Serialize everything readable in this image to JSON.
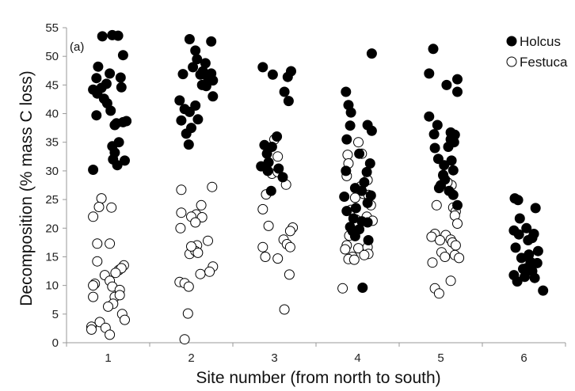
{
  "chart_data": {
    "type": "scatter",
    "panel_label": "(a)",
    "xlabel": "Site number (from north to south)",
    "ylabel": "Decomposition (% mass C loss)",
    "xlim": [
      0.5,
      6.5
    ],
    "ylim": [
      0,
      55
    ],
    "y_ticks": [
      0,
      5,
      10,
      15,
      20,
      25,
      30,
      35,
      40,
      45,
      50,
      55
    ],
    "x_ticks": [
      1,
      2,
      3,
      4,
      5,
      6
    ],
    "grid": false,
    "legend_position": "top-right",
    "series": [
      {
        "name": "Holcus",
        "marker": "filled-circle",
        "color": "#000000",
        "points": [
          [
            1.05,
            53.7
          ],
          [
            0.93,
            53.5
          ],
          [
            1.12,
            53.6
          ],
          [
            1.18,
            50.2
          ],
          [
            0.88,
            48.2
          ],
          [
            1.02,
            47.0
          ],
          [
            0.86,
            46.2
          ],
          [
            1.15,
            46.3
          ],
          [
            0.98,
            45.2
          ],
          [
            0.82,
            44.2
          ],
          [
            0.92,
            44.5
          ],
          [
            1.16,
            44.6
          ],
          [
            0.87,
            43.5
          ],
          [
            0.95,
            42.6
          ],
          [
            0.99,
            41.8
          ],
          [
            1.03,
            40.5
          ],
          [
            0.86,
            39.7
          ],
          [
            1.22,
            38.7
          ],
          [
            1.1,
            38.3
          ],
          [
            1.18,
            38.5
          ],
          [
            1.08,
            38.0
          ],
          [
            1.13,
            35.0
          ],
          [
            1.05,
            34.3
          ],
          [
            1.08,
            33.2
          ],
          [
            1.06,
            32.0
          ],
          [
            1.2,
            31.8
          ],
          [
            1.11,
            31.0
          ],
          [
            0.82,
            30.2
          ],
          [
            1.98,
            53.0
          ],
          [
            2.24,
            52.6
          ],
          [
            2.05,
            51.0
          ],
          [
            2.07,
            49.5
          ],
          [
            2.17,
            48.8
          ],
          [
            2.02,
            48.1
          ],
          [
            2.14,
            47.4
          ],
          [
            2.24,
            47.0
          ],
          [
            2.11,
            46.8
          ],
          [
            1.9,
            46.9
          ],
          [
            2.2,
            46.3
          ],
          [
            2.26,
            45.8
          ],
          [
            2.13,
            45.0
          ],
          [
            2.18,
            44.8
          ],
          [
            2.26,
            43.0
          ],
          [
            1.86,
            42.3
          ],
          [
            1.92,
            40.8
          ],
          [
            2.05,
            41.4
          ],
          [
            1.98,
            40.3
          ],
          [
            1.88,
            38.8
          ],
          [
            2.08,
            39.0
          ],
          [
            2.0,
            37.5
          ],
          [
            1.94,
            36.5
          ],
          [
            1.97,
            34.6
          ],
          [
            2.86,
            48.1
          ],
          [
            3.2,
            47.4
          ],
          [
            3.16,
            46.4
          ],
          [
            2.98,
            46.8
          ],
          [
            3.12,
            43.8
          ],
          [
            3.17,
            42.2
          ],
          [
            3.03,
            36.0
          ],
          [
            2.88,
            34.5
          ],
          [
            2.97,
            34.2
          ],
          [
            2.91,
            33.0
          ],
          [
            2.93,
            31.5
          ],
          [
            2.84,
            30.8
          ],
          [
            2.92,
            30.0
          ],
          [
            3.05,
            30.4
          ],
          [
            3.1,
            28.9
          ],
          [
            2.96,
            26.5
          ],
          [
            4.17,
            50.5
          ],
          [
            3.86,
            43.8
          ],
          [
            3.89,
            41.5
          ],
          [
            3.92,
            40.2
          ],
          [
            3.91,
            37.9
          ],
          [
            4.12,
            38.0
          ],
          [
            4.17,
            37.0
          ],
          [
            3.87,
            35.5
          ],
          [
            4.02,
            33.0
          ],
          [
            4.15,
            31.3
          ],
          [
            3.86,
            30.0
          ],
          [
            4.11,
            29.8
          ],
          [
            4.08,
            28.0
          ],
          [
            3.97,
            27.0
          ],
          [
            4.05,
            26.5
          ],
          [
            3.84,
            25.5
          ],
          [
            4.16,
            25.7
          ],
          [
            4.12,
            24.4
          ],
          [
            3.98,
            23.5
          ],
          [
            3.87,
            23.0
          ],
          [
            3.95,
            21.7
          ],
          [
            4.05,
            21.2
          ],
          [
            4.12,
            21.0
          ],
          [
            3.91,
            20.2
          ],
          [
            4.02,
            19.8
          ],
          [
            3.94,
            19.5
          ],
          [
            3.97,
            18.6
          ],
          [
            4.13,
            17.9
          ],
          [
            4.06,
            9.6
          ],
          [
            4.91,
            51.3
          ],
          [
            4.86,
            47.0
          ],
          [
            5.2,
            46.0
          ],
          [
            5.07,
            45.0
          ],
          [
            5.2,
            43.8
          ],
          [
            4.86,
            39.5
          ],
          [
            4.96,
            38.0
          ],
          [
            4.92,
            36.4
          ],
          [
            5.12,
            36.7
          ],
          [
            5.17,
            36.3
          ],
          [
            5.12,
            35.5
          ],
          [
            5.16,
            35.0
          ],
          [
            4.93,
            34.0
          ],
          [
            5.09,
            34.2
          ],
          [
            4.97,
            32.1
          ],
          [
            5.13,
            31.8
          ],
          [
            5.04,
            31.0
          ],
          [
            5.15,
            30.1
          ],
          [
            5.03,
            29.2
          ],
          [
            5.05,
            28.5
          ],
          [
            5.0,
            27.5
          ],
          [
            4.98,
            27.0
          ],
          [
            5.1,
            26.5
          ],
          [
            5.15,
            25.8
          ],
          [
            5.2,
            24.0
          ],
          [
            5.89,
            25.2
          ],
          [
            5.93,
            24.9
          ],
          [
            6.14,
            23.5
          ],
          [
            5.95,
            21.7
          ],
          [
            6.03,
            20.0
          ],
          [
            6.12,
            19.0
          ],
          [
            5.88,
            19.6
          ],
          [
            5.94,
            18.9
          ],
          [
            6.1,
            18.3
          ],
          [
            6.05,
            17.9
          ],
          [
            5.9,
            16.6
          ],
          [
            6.17,
            16.0
          ],
          [
            6.06,
            15.4
          ],
          [
            5.97,
            14.8
          ],
          [
            6.08,
            14.1
          ],
          [
            6.16,
            13.9
          ],
          [
            5.99,
            12.9
          ],
          [
            6.03,
            13.0
          ],
          [
            6.1,
            12.5
          ],
          [
            5.88,
            11.8
          ],
          [
            6.01,
            11.5
          ],
          [
            6.13,
            11.3
          ],
          [
            5.92,
            10.7
          ],
          [
            6.23,
            9.1
          ]
        ]
      },
      {
        "name": "Festuca",
        "marker": "open-circle",
        "color": "#ffffff",
        "points": [
          [
            0.92,
            25.2
          ],
          [
            1.04,
            23.6
          ],
          [
            0.89,
            23.7
          ],
          [
            0.82,
            22.0
          ],
          [
            0.87,
            17.3
          ],
          [
            1.02,
            17.3
          ],
          [
            0.87,
            14.2
          ],
          [
            1.19,
            13.5
          ],
          [
            1.13,
            12.7
          ],
          [
            1.16,
            13.0
          ],
          [
            1.09,
            12.2
          ],
          [
            0.96,
            11.8
          ],
          [
            1.02,
            10.8
          ],
          [
            0.84,
            10.3
          ],
          [
            0.82,
            10.0
          ],
          [
            1.05,
            9.8
          ],
          [
            1.14,
            9.2
          ],
          [
            1.08,
            8.0
          ],
          [
            1.14,
            8.3
          ],
          [
            0.82,
            8.0
          ],
          [
            1.06,
            6.8
          ],
          [
            1.0,
            6.3
          ],
          [
            1.17,
            5.0
          ],
          [
            1.2,
            4.0
          ],
          [
            0.9,
            3.6
          ],
          [
            0.8,
            2.8
          ],
          [
            0.97,
            2.6
          ],
          [
            0.8,
            2.3
          ],
          [
            1.02,
            1.4
          ],
          [
            2.25,
            27.2
          ],
          [
            1.88,
            26.7
          ],
          [
            2.12,
            24.0
          ],
          [
            1.88,
            22.7
          ],
          [
            2.06,
            22.4
          ],
          [
            2.13,
            21.9
          ],
          [
            2.0,
            22.0
          ],
          [
            2.05,
            21.0
          ],
          [
            1.87,
            20.0
          ],
          [
            2.2,
            17.8
          ],
          [
            2.07,
            17.0
          ],
          [
            1.98,
            15.5
          ],
          [
            2.05,
            16.0
          ],
          [
            2.08,
            15.7
          ],
          [
            2.0,
            16.8
          ],
          [
            2.26,
            13.3
          ],
          [
            2.11,
            12.0
          ],
          [
            2.22,
            12.4
          ],
          [
            1.86,
            10.6
          ],
          [
            1.92,
            10.4
          ],
          [
            1.97,
            9.8
          ],
          [
            1.96,
            5.1
          ],
          [
            1.92,
            0.6
          ],
          [
            3.0,
            35.5
          ],
          [
            3.04,
            32.5
          ],
          [
            2.97,
            29.5
          ],
          [
            3.04,
            29.8
          ],
          [
            3.14,
            27.6
          ],
          [
            2.9,
            25.9
          ],
          [
            2.86,
            23.3
          ],
          [
            2.93,
            20.4
          ],
          [
            3.22,
            20.1
          ],
          [
            3.19,
            19.5
          ],
          [
            3.11,
            18.0
          ],
          [
            3.15,
            17.2
          ],
          [
            2.86,
            16.7
          ],
          [
            3.19,
            16.7
          ],
          [
            2.89,
            15.0
          ],
          [
            3.04,
            14.7
          ],
          [
            3.18,
            11.9
          ],
          [
            3.12,
            5.8
          ],
          [
            4.01,
            35.0
          ],
          [
            4.05,
            33.0
          ],
          [
            3.88,
            32.8
          ],
          [
            3.89,
            31.3
          ],
          [
            3.87,
            29.1
          ],
          [
            4.12,
            28.4
          ],
          [
            4.04,
            27.3
          ],
          [
            4.07,
            26.0
          ],
          [
            3.97,
            25.3
          ],
          [
            4.13,
            25.8
          ],
          [
            4.16,
            24.0
          ],
          [
            3.92,
            23.2
          ],
          [
            4.11,
            22.0
          ],
          [
            3.98,
            21.5
          ],
          [
            4.18,
            21.3
          ],
          [
            4.0,
            20.5
          ],
          [
            3.9,
            18.7
          ],
          [
            3.87,
            17.0
          ],
          [
            4.01,
            16.5
          ],
          [
            4.12,
            16.7
          ],
          [
            4.13,
            15.5
          ],
          [
            3.85,
            16.3
          ],
          [
            3.94,
            15.0
          ],
          [
            4.08,
            15.3
          ],
          [
            3.89,
            14.6
          ],
          [
            3.96,
            14.5
          ],
          [
            3.82,
            9.5
          ],
          [
            5.13,
            27.5
          ],
          [
            5.08,
            28.0
          ],
          [
            5.03,
            29.3
          ],
          [
            4.95,
            24.0
          ],
          [
            5.15,
            23.6
          ],
          [
            5.18,
            22.9
          ],
          [
            5.17,
            22.2
          ],
          [
            5.2,
            20.8
          ],
          [
            4.93,
            19.0
          ],
          [
            4.89,
            18.5
          ],
          [
            5.06,
            18.8
          ],
          [
            5.12,
            18.0
          ],
          [
            4.99,
            17.9
          ],
          [
            5.14,
            17.5
          ],
          [
            5.18,
            17.0
          ],
          [
            5.01,
            15.8
          ],
          [
            5.17,
            15.3
          ],
          [
            5.22,
            14.8
          ],
          [
            5.05,
            15.0
          ],
          [
            4.9,
            14.0
          ],
          [
            5.12,
            10.8
          ],
          [
            4.93,
            9.5
          ],
          [
            4.98,
            8.6
          ]
        ]
      }
    ]
  }
}
